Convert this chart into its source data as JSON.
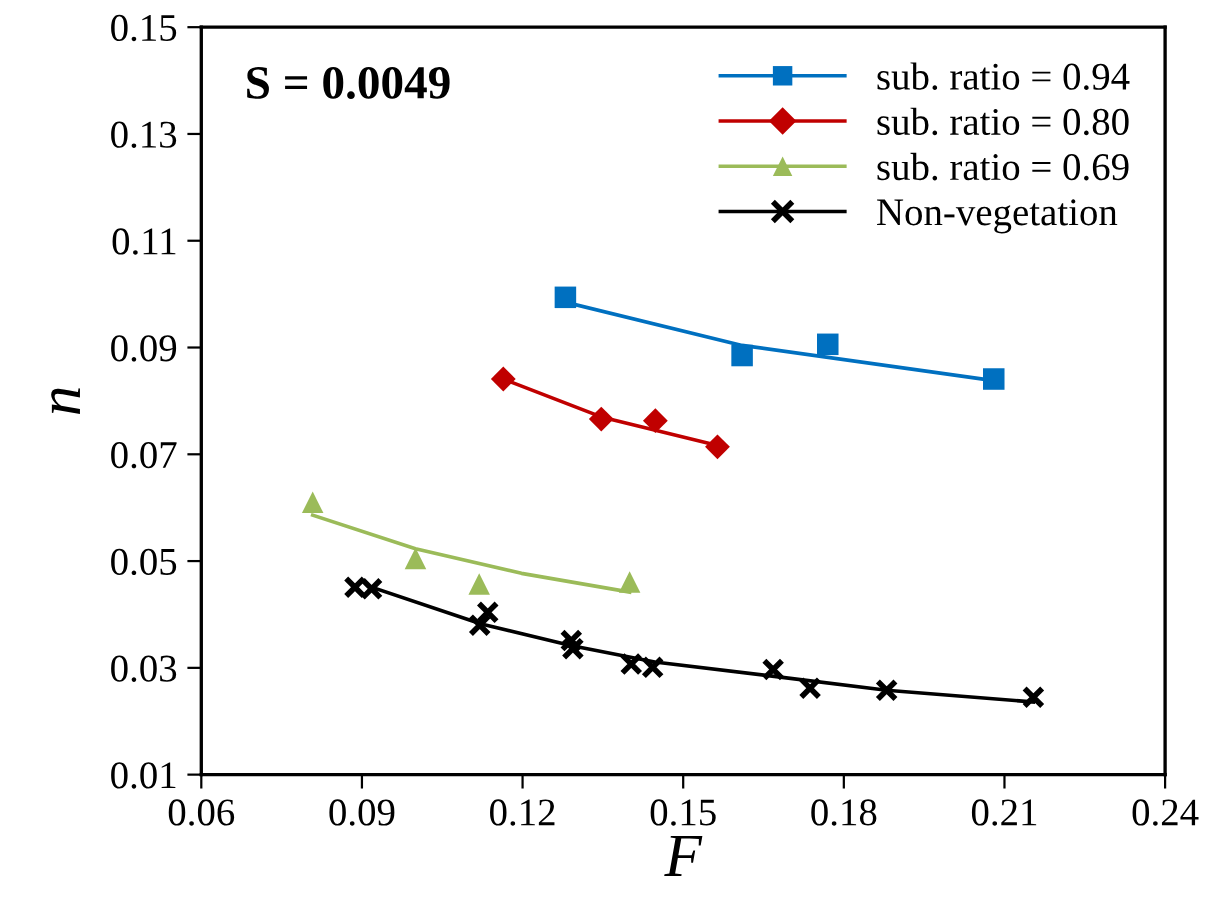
{
  "chart_data": {
    "type": "scatter",
    "xlabel": "F",
    "ylabel": "n",
    "xlim": [
      0.06,
      0.24
    ],
    "xticks": [
      0.06,
      0.09,
      0.12,
      0.15,
      0.18,
      0.21,
      0.24
    ],
    "ylim": [
      0.01,
      0.15
    ],
    "yticks": [
      0.01,
      0.03,
      0.05,
      0.07,
      0.09,
      0.11,
      0.13,
      0.15
    ],
    "grid": false,
    "legend": "top right",
    "annotations": [
      "S = 0.0049"
    ],
    "series": [
      {
        "name": "sub. ratio = 0.94",
        "color": "#0070c0",
        "marker": "square",
        "x": [
          0.128,
          0.161,
          0.177,
          0.208
        ],
        "values": [
          0.0994,
          0.0885,
          0.0906,
          0.0841
        ]
      },
      {
        "type": "line",
        "color": "#0070c0",
        "x": [
          0.13,
          0.161,
          0.208
        ],
        "values": [
          0.098,
          0.0904,
          0.0838
        ]
      },
      {
        "name": "sub. ratio = 0.80",
        "color": "#c00000",
        "marker": "diamond",
        "x": [
          0.1164,
          0.1347,
          0.1448,
          0.1564
        ],
        "values": [
          0.0841,
          0.0766,
          0.0763,
          0.0714
        ]
      },
      {
        "type": "line",
        "color": "#c00000",
        "x": [
          0.1164,
          0.1347,
          0.1563
        ],
        "values": [
          0.0841,
          0.077,
          0.0717
        ]
      },
      {
        "name": "sub. ratio = 0.69",
        "color": "#9bbb59",
        "marker": "triangle",
        "x": [
          0.0808,
          0.1,
          0.1119,
          0.14
        ],
        "values": [
          0.061,
          0.0505,
          0.0457,
          0.0461
        ]
      },
      {
        "type": "line",
        "color": "#9bbb59",
        "x": [
          0.0808,
          0.1,
          0.1198,
          0.14
        ],
        "values": [
          0.0586,
          0.0523,
          0.0477,
          0.0442
        ]
      },
      {
        "name": "Non-vegetation",
        "color": "#000000",
        "marker": "cross",
        "x": [
          0.0887,
          0.0918,
          0.112,
          0.1135,
          0.1291,
          0.1294,
          0.1403,
          0.1443,
          0.1668,
          0.1737,
          0.188,
          0.2154
        ],
        "values": [
          0.0451,
          0.0448,
          0.038,
          0.0404,
          0.0351,
          0.0336,
          0.0307,
          0.0301,
          0.0297,
          0.0262,
          0.0258,
          0.0245
        ]
      },
      {
        "type": "line",
        "color": "#000000",
        "x": [
          0.0918,
          0.1123,
          0.129,
          0.1447,
          0.167,
          0.188,
          0.2154
        ],
        "values": [
          0.0451,
          0.0382,
          0.0342,
          0.0311,
          0.0284,
          0.0258,
          0.0236
        ]
      }
    ]
  }
}
